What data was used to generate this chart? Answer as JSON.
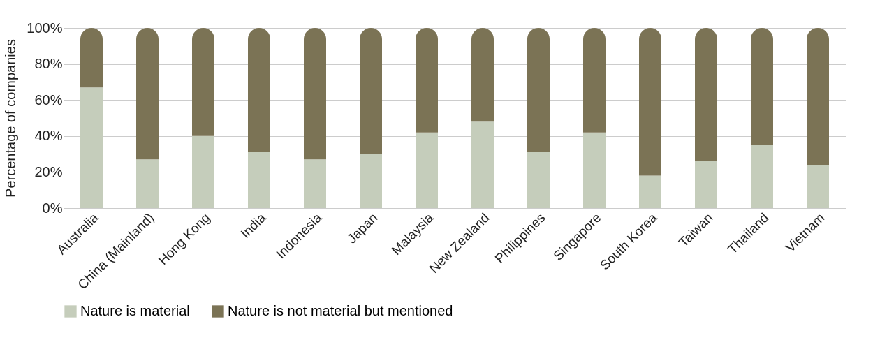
{
  "chart_data": {
    "type": "bar",
    "stacked": true,
    "ylabel": "Percentage of companies",
    "categories": [
      "Australia",
      "China (Mainland)",
      "Hong Kong",
      "India",
      "Indonesia",
      "Japan",
      "Malaysia",
      "New Zealand",
      "Philippines",
      "Singapore",
      "South Korea",
      "Taiwan",
      "Thailand",
      "Vietnam"
    ],
    "series": [
      {
        "name": "Nature is material",
        "color": "#c5cdbb",
        "values": [
          67,
          27,
          40,
          31,
          27,
          30,
          42,
          48,
          31,
          42,
          18,
          26,
          35,
          24
        ]
      },
      {
        "name": "Nature is not material but mentioned",
        "color": "#7b7355",
        "values": [
          33,
          73,
          60,
          69,
          73,
          70,
          58,
          52,
          69,
          58,
          82,
          74,
          65,
          76
        ]
      }
    ],
    "ylim": [
      0,
      100
    ],
    "yticks": [
      {
        "value": 0,
        "label": "0%"
      },
      {
        "value": 20,
        "label": "20%"
      },
      {
        "value": 40,
        "label": "40%"
      },
      {
        "value": 60,
        "label": "60%"
      },
      {
        "value": 80,
        "label": "80%"
      },
      {
        "value": 100,
        "label": "100%"
      }
    ],
    "grid": "y",
    "legend": "bottom"
  }
}
